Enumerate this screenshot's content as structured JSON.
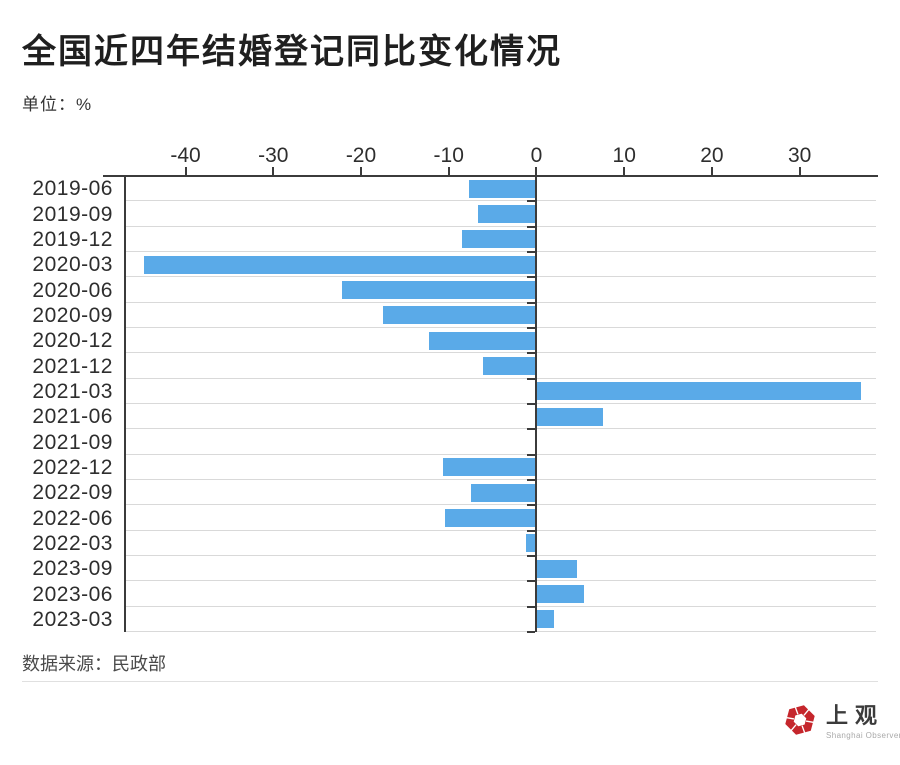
{
  "title": "全国近四年结婚登记同比变化情况",
  "unit_label": "单位：%",
  "source_label": "数据来源：民政部",
  "logo": {
    "cn": "上观",
    "en": "Shanghai Observer",
    "icon": "aperture-hexagon-icon",
    "icon_color": "#c5262c"
  },
  "colors": {
    "bar": "#5aaae8",
    "axis": "#3b3b3b",
    "grid": "#d9d9d9"
  },
  "chart_data": {
    "type": "bar",
    "orientation": "horizontal",
    "title": "全国近四年结婚登记同比变化情况",
    "unit": "%",
    "categories": [
      "2019-06",
      "2019-09",
      "2019-12",
      "2020-03",
      "2020-06",
      "2020-09",
      "2020-12",
      "2021-12",
      "2021-03",
      "2021-06",
      "2021-09",
      "2022-12",
      "2022-09",
      "2022-06",
      "2022-03",
      "2023-09",
      "2023-06",
      "2023-03"
    ],
    "values": [
      -7.7,
      -6.7,
      -8.5,
      -44.7,
      -22.2,
      -17.5,
      -12.2,
      -6.1,
      36.9,
      7.5,
      -0.1,
      -10.6,
      -7.5,
      -10.4,
      -1.2,
      4.5,
      5.3,
      1.9
    ],
    "x_ticks": [
      -40,
      -30,
      -20,
      -10,
      0,
      10,
      20,
      30
    ],
    "xlim": [
      -46.9,
      38.7
    ],
    "grid": "row-separators",
    "legend": "none"
  }
}
